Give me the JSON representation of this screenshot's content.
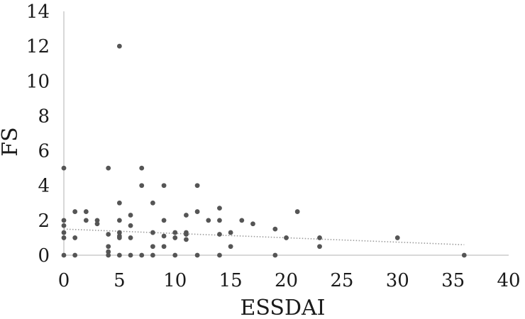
{
  "chart_data": {
    "type": "scatter",
    "title": "",
    "xlabel": "ESSDAI",
    "ylabel": "FS",
    "xlim": [
      0,
      40
    ],
    "ylim": [
      0,
      14
    ],
    "x_ticks": [
      0,
      5,
      10,
      15,
      20,
      25,
      30,
      35,
      40
    ],
    "y_ticks": [
      0,
      2,
      4,
      6,
      8,
      10,
      12,
      14
    ],
    "grid": false,
    "legend": "none",
    "colors": {
      "points": "#555555",
      "trendline": "#9a9a9a",
      "axis": "#cccccc",
      "text": "#1a1a1a"
    },
    "trendline": {
      "style": "dotted",
      "x": [
        0,
        36
      ],
      "y": [
        1.5,
        0.6
      ]
    },
    "series": [
      {
        "points": [
          [
            0,
            5
          ],
          [
            0,
            2
          ],
          [
            0,
            1.7
          ],
          [
            0,
            1.3
          ],
          [
            0,
            1
          ],
          [
            0,
            0
          ],
          [
            1,
            2.5
          ],
          [
            1,
            1
          ],
          [
            1,
            0
          ],
          [
            2,
            2.5
          ],
          [
            2,
            2
          ],
          [
            3,
            2
          ],
          [
            3,
            1.8
          ],
          [
            4,
            5
          ],
          [
            4,
            1.2
          ],
          [
            4,
            0.5
          ],
          [
            4,
            0.2
          ],
          [
            4,
            0
          ],
          [
            5,
            12
          ],
          [
            5,
            3
          ],
          [
            5,
            2
          ],
          [
            5,
            1.3
          ],
          [
            5,
            1.1
          ],
          [
            5,
            1
          ],
          [
            5,
            0
          ],
          [
            6,
            2.3
          ],
          [
            6,
            1.7
          ],
          [
            6,
            1
          ],
          [
            6,
            0
          ],
          [
            7,
            5
          ],
          [
            7,
            4
          ],
          [
            7,
            0
          ],
          [
            8,
            3
          ],
          [
            8,
            1.3
          ],
          [
            8,
            0.5
          ],
          [
            8,
            0
          ],
          [
            9,
            4
          ],
          [
            9,
            2
          ],
          [
            9,
            1.1
          ],
          [
            9,
            0.5
          ],
          [
            10,
            1.3
          ],
          [
            10,
            1
          ],
          [
            10,
            0
          ],
          [
            11,
            2.3
          ],
          [
            11,
            1.3
          ],
          [
            11,
            1.2
          ],
          [
            11,
            0.9
          ],
          [
            12,
            4
          ],
          [
            12,
            2.5
          ],
          [
            12,
            0
          ],
          [
            13,
            2
          ],
          [
            14,
            2.7
          ],
          [
            14,
            2
          ],
          [
            14,
            1.2
          ],
          [
            14,
            0
          ],
          [
            15,
            1.3
          ],
          [
            15,
            0.5
          ],
          [
            16,
            2
          ],
          [
            17,
            1.8
          ],
          [
            19,
            1.5
          ],
          [
            19,
            0
          ],
          [
            20,
            1
          ],
          [
            21,
            2.5
          ],
          [
            23,
            1
          ],
          [
            23,
            0.5
          ],
          [
            30,
            1
          ],
          [
            36,
            0
          ]
        ]
      }
    ]
  }
}
